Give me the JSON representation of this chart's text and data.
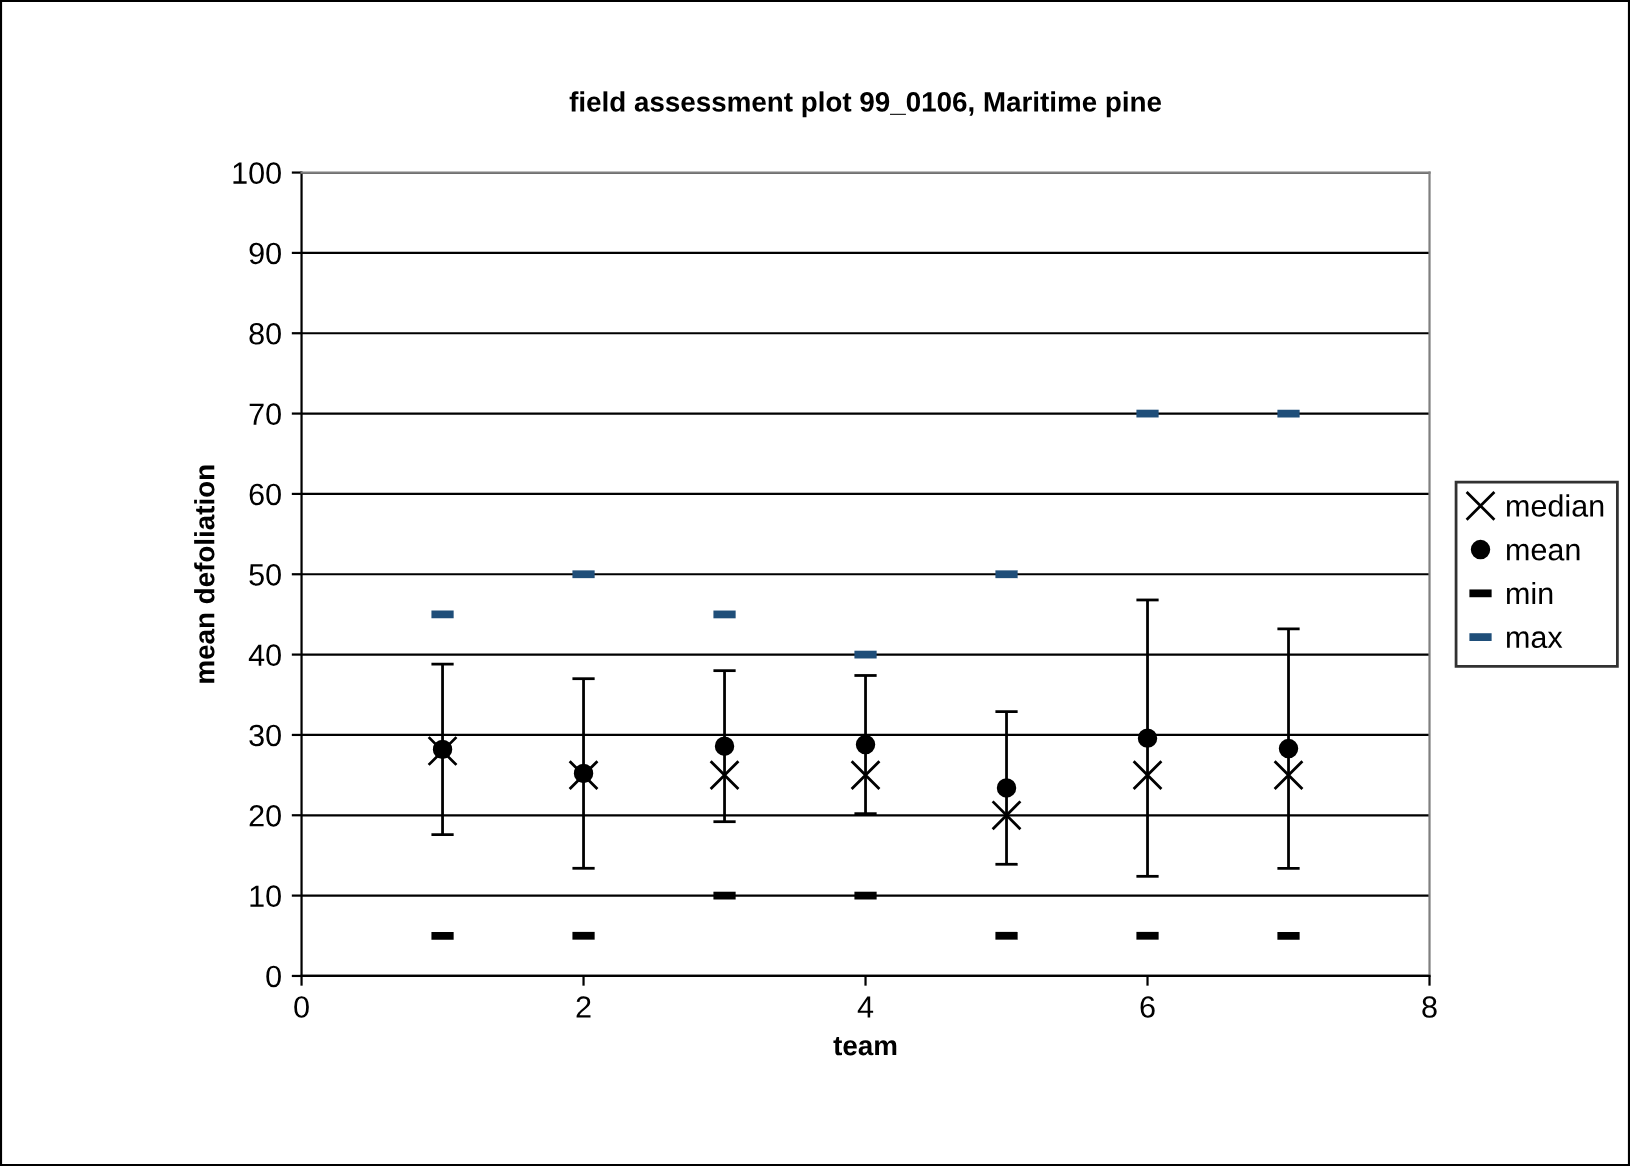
{
  "chart_data": {
    "type": "scatter",
    "title": "field assessment plot 99_0106, Maritime pine",
    "xlabel": "team",
    "ylabel": "mean defoliation",
    "x": [
      1,
      2,
      3,
      4,
      5,
      6,
      7
    ],
    "series": [
      {
        "name": "median",
        "color": "#000000",
        "marker": "cross",
        "values": [
          28,
          25,
          25,
          25,
          20,
          25,
          25
        ]
      },
      {
        "name": "mean",
        "color": "#000000",
        "marker": "circle",
        "values": [
          28.2,
          25.2,
          28.6,
          28.8,
          23.4,
          29.6,
          28.3
        ],
        "errors": [
          10.6,
          11.8,
          9.4,
          8.6,
          9.5,
          17.2,
          14.9
        ]
      },
      {
        "name": "min",
        "color": "#000000",
        "marker": "square",
        "values": [
          5,
          5,
          10,
          10,
          5,
          5,
          5
        ]
      },
      {
        "name": "max",
        "color": "#1f4e79",
        "marker": "square",
        "values": [
          45,
          50,
          45,
          40,
          50,
          70,
          70
        ]
      }
    ],
    "xlim": [
      0,
      8
    ],
    "xticks": [
      0,
      2,
      4,
      6,
      8
    ],
    "ylim": [
      0,
      100
    ],
    "yticks": [
      0,
      10,
      20,
      30,
      40,
      50,
      60,
      70,
      80,
      90,
      100
    ],
    "grid": "y",
    "legend": "right"
  }
}
